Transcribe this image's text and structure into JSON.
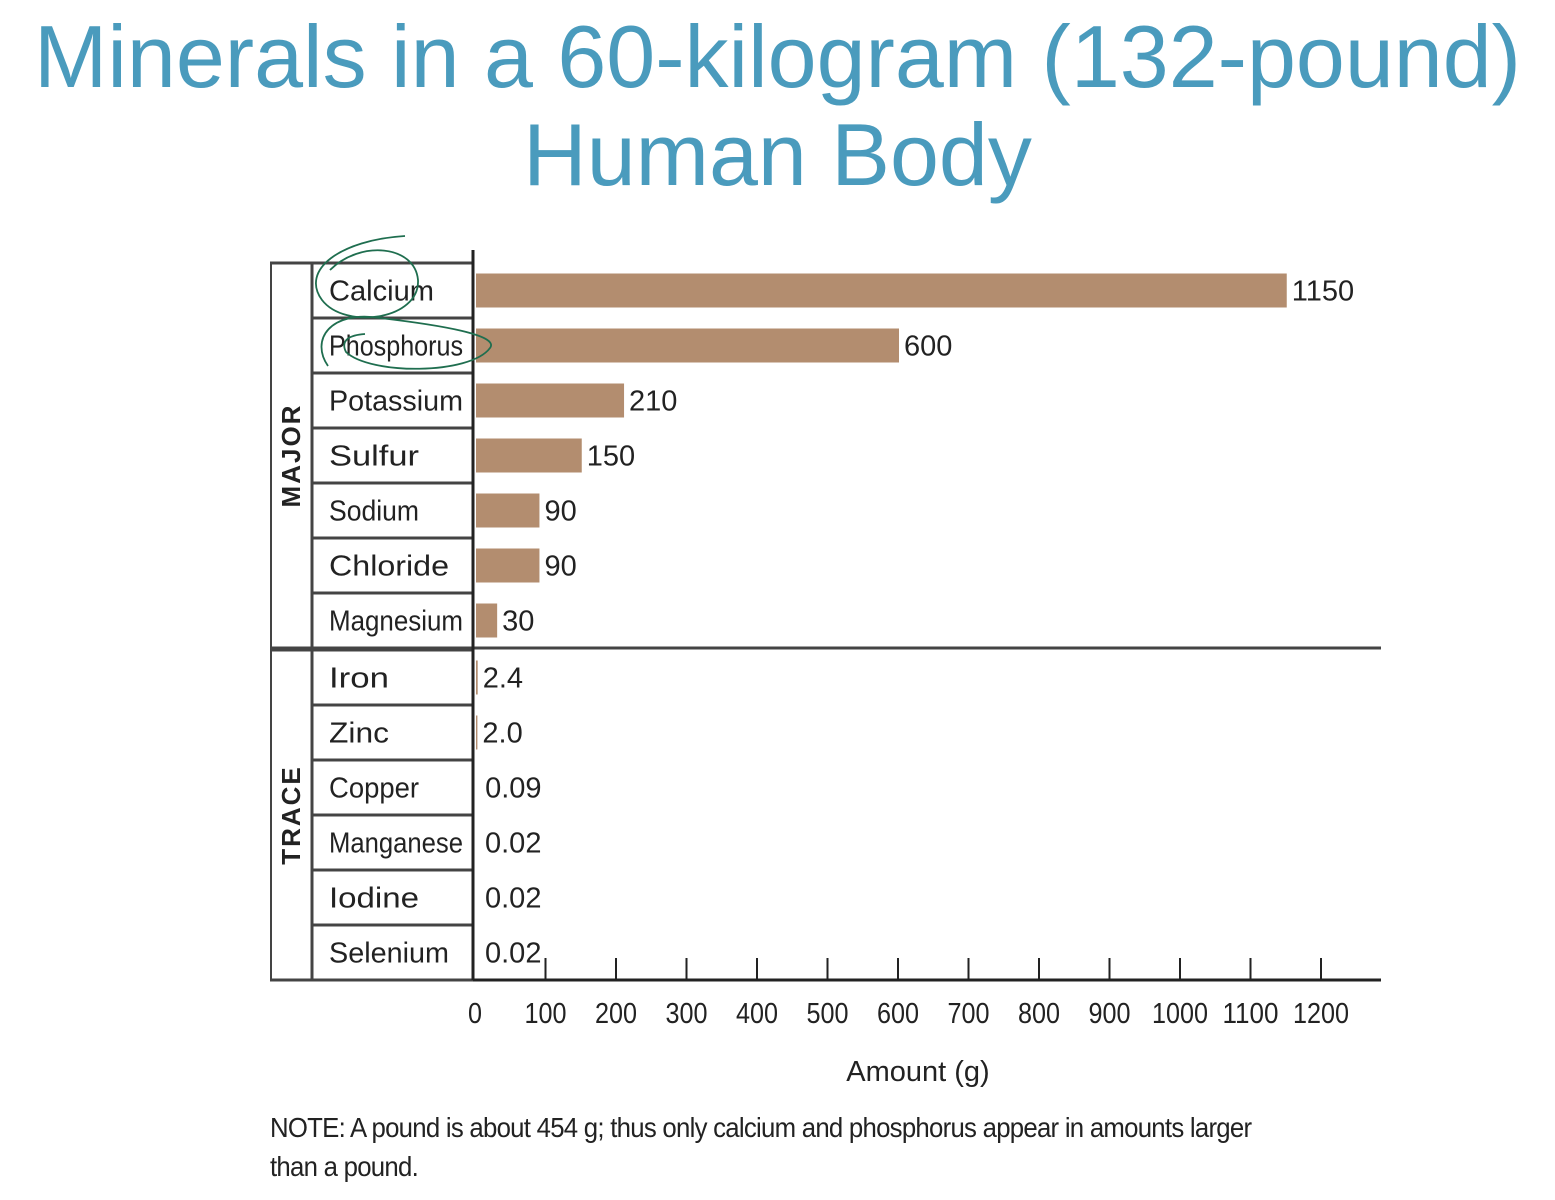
{
  "chart_data": {
    "type": "bar",
    "orientation": "horizontal",
    "title": "Minerals in a 60-kilogram (132-pound) Human Body",
    "xlabel": "Amount (g)",
    "xlim": [
      0,
      1200
    ],
    "xticks": [
      0,
      100,
      200,
      300,
      400,
      500,
      600,
      700,
      800,
      900,
      1000,
      1100,
      1200
    ],
    "groups": [
      {
        "name": "MAJOR",
        "categories": [
          "Calcium",
          "Phosphorus",
          "Potassium",
          "Sulfur",
          "Sodium",
          "Chloride",
          "Magnesium"
        ],
        "values": [
          1150,
          600,
          210,
          150,
          90,
          90,
          30
        ],
        "labels": [
          "1150",
          "600",
          "210",
          "150",
          "90",
          "90",
          "30"
        ]
      },
      {
        "name": "TRACE",
        "categories": [
          "Iron",
          "Zinc",
          "Copper",
          "Manganese",
          "Iodine",
          "Selenium"
        ],
        "values": [
          2.4,
          2.0,
          0.09,
          0.02,
          0.02,
          0.02
        ],
        "labels": [
          "2.4",
          "2.0",
          "0.09",
          "0.02",
          "0.02",
          "0.02"
        ]
      }
    ],
    "bar_color": "#b38d6f",
    "annotation_color": "#1f6e4f"
  },
  "title_line1": "Minerals in a 60-kilogram (132-pound)",
  "title_line2": "Human Body",
  "note_label": "NOTE:",
  "note_text": " A pound is about 454 g; thus only calcium and phosphorus appear in amounts larger than a pound.",
  "title_color": "#4a9bbd"
}
